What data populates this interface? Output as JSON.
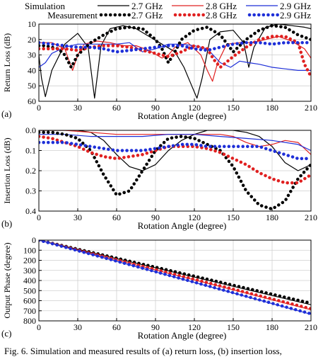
{
  "legend": {
    "row1_label": "Simulation",
    "row2_label": "Measurement",
    "entries": [
      "2.7 GHz",
      "2.8 GHz",
      "2.9 GHz"
    ]
  },
  "colors": {
    "s27": "#000000",
    "s28": "#e02020",
    "s29": "#1e2fd8"
  },
  "caption": "Fig. 6.   Simulation and measured results of (a) return loss, (b) insertion loss,",
  "chart_data": [
    {
      "type": "line",
      "panel_label": "(a)",
      "xlabel": "Rotation Angle (degree)",
      "ylabel": "Return Loss (dB)",
      "xlim": [
        0,
        210
      ],
      "ylim": [
        10,
        60
      ],
      "y_inverted": true,
      "xticks": [
        0,
        30,
        60,
        90,
        120,
        150,
        180,
        210
      ],
      "yticks": [
        10,
        20,
        30,
        40,
        50,
        60
      ],
      "grid": true,
      "series": [
        {
          "name": "2.7 GHz",
          "style": "solid",
          "color": "#000000",
          "x": [
            0,
            2,
            5,
            10,
            20,
            30,
            38,
            43,
            48,
            55,
            65,
            75,
            85,
            95,
            105,
            112,
            118,
            122,
            126,
            132,
            140,
            150,
            158,
            162,
            166,
            175,
            185,
            195,
            205,
            210
          ],
          "y": [
            30,
            45,
            57,
            40,
            23,
            16,
            25,
            58,
            24,
            13,
            11,
            13,
            18,
            23,
            28,
            38,
            50,
            58,
            45,
            20,
            15,
            14,
            22,
            38,
            25,
            12,
            10,
            11,
            12,
            13
          ]
        },
        {
          "name": "2.8 GHz",
          "style": "solid",
          "color": "#e02020",
          "x": [
            0,
            10,
            20,
            26,
            30,
            35,
            45,
            55,
            65,
            75,
            85,
            95,
            100,
            105,
            115,
            125,
            130,
            134,
            138,
            145,
            155,
            165,
            175,
            185,
            195,
            205,
            210
          ],
          "y": [
            22,
            22,
            26,
            40,
            30,
            23,
            21,
            22,
            24,
            24,
            27,
            32,
            30,
            25,
            22,
            30,
            40,
            47,
            35,
            23,
            22,
            22,
            20,
            18,
            21,
            26,
            32
          ]
        },
        {
          "name": "2.9 GHz",
          "style": "solid",
          "color": "#1e2fd8",
          "x": [
            0,
            5,
            10,
            20,
            30,
            45,
            60,
            70,
            80,
            90,
            100,
            110,
            120,
            130,
            140,
            148,
            155,
            162,
            170,
            180,
            190,
            200,
            210
          ],
          "y": [
            38,
            35,
            29,
            25,
            23,
            23,
            23,
            22,
            28,
            26,
            23,
            23,
            24,
            26,
            35,
            38,
            34,
            35,
            36,
            38,
            39,
            40,
            40
          ]
        },
        {
          "name": "2.7 GHz",
          "style": "dotted",
          "color": "#000000",
          "x": [
            0,
            5,
            10,
            15,
            20,
            25,
            30,
            40,
            50,
            60,
            70,
            80,
            90,
            95,
            100,
            105,
            110,
            120,
            130,
            140,
            150,
            160,
            170,
            180,
            190,
            200,
            210
          ],
          "y": [
            24,
            24,
            25,
            26,
            30,
            38,
            30,
            22,
            17,
            13,
            12,
            13,
            20,
            26,
            35,
            28,
            20,
            14,
            12,
            17,
            28,
            20,
            14,
            11,
            12,
            17,
            20
          ]
        },
        {
          "name": "2.8 GHz",
          "style": "dotted",
          "color": "#e02020",
          "x": [
            0,
            10,
            20,
            30,
            40,
            50,
            60,
            70,
            80,
            90,
            100,
            110,
            120,
            130,
            135,
            140,
            150,
            160,
            170,
            180,
            190,
            200,
            205,
            210
          ],
          "y": [
            26,
            26,
            26,
            27,
            25,
            24,
            24,
            25,
            27,
            29,
            31,
            28,
            24,
            26,
            33,
            38,
            31,
            25,
            20,
            18,
            18,
            22,
            36,
            44
          ]
        },
        {
          "name": "2.9 GHz",
          "style": "dotted",
          "color": "#1e2fd8",
          "x": [
            0,
            10,
            20,
            30,
            40,
            50,
            60,
            70,
            80,
            90,
            100,
            110,
            120,
            130,
            140,
            150,
            160,
            170,
            180,
            190,
            200,
            210
          ],
          "y": [
            22,
            23,
            24,
            25,
            25,
            26,
            28,
            27,
            26,
            25,
            24,
            24,
            26,
            27,
            25,
            23,
            22,
            22,
            23,
            22,
            22,
            22
          ]
        }
      ]
    },
    {
      "type": "line",
      "panel_label": "(b)",
      "xlabel": "Rotation Angle (degree)",
      "ylabel": "Insertion Loss (dB)",
      "xlim": [
        0,
        210
      ],
      "ylim": [
        0,
        0.4
      ],
      "y_inverted": true,
      "xticks": [
        0,
        30,
        60,
        90,
        120,
        150,
        180,
        210
      ],
      "ytick_labels": [
        "0.0",
        "0.1",
        "0.2",
        "0.3",
        "0.4"
      ],
      "yticks": [
        0,
        0.1,
        0.2,
        0.3,
        0.4
      ],
      "grid": true,
      "series": [
        {
          "name": "2.7 GHz",
          "style": "solid",
          "color": "#000000",
          "x": [
            0,
            10,
            20,
            30,
            40,
            50,
            60,
            70,
            80,
            90,
            100,
            110,
            120,
            130,
            140,
            150,
            160,
            170,
            180,
            185,
            190,
            200,
            210
          ],
          "y": [
            0.0,
            0.0,
            0.0,
            0.0,
            0.01,
            0.05,
            0.12,
            0.18,
            0.2,
            0.17,
            0.1,
            0.05,
            0.02,
            0.0,
            0.0,
            0.0,
            0.01,
            0.03,
            0.08,
            0.12,
            0.16,
            0.2,
            0.17
          ]
        },
        {
          "name": "2.8 GHz",
          "style": "solid",
          "color": "#e02020",
          "x": [
            0,
            20,
            40,
            60,
            80,
            100,
            120,
            140,
            150,
            160,
            170,
            180,
            190,
            200,
            210
          ],
          "y": [
            0.0,
            0.0,
            0.01,
            0.02,
            0.02,
            0.02,
            0.02,
            0.02,
            0.03,
            0.06,
            0.08,
            0.07,
            0.05,
            0.06,
            0.12
          ]
        },
        {
          "name": "2.9 GHz",
          "style": "solid",
          "color": "#1e2fd8",
          "x": [
            0,
            20,
            40,
            60,
            80,
            100,
            120,
            140,
            160,
            180,
            200,
            210
          ],
          "y": [
            0.02,
            0.02,
            0.03,
            0.03,
            0.03,
            0.02,
            0.02,
            0.03,
            0.04,
            0.05,
            0.07,
            0.1
          ]
        },
        {
          "name": "2.7 GHz",
          "style": "dotted",
          "color": "#000000",
          "x": [
            0,
            10,
            20,
            30,
            40,
            50,
            60,
            70,
            80,
            90,
            100,
            110,
            120,
            130,
            140,
            150,
            160,
            170,
            180,
            190,
            200,
            210
          ],
          "y": [
            0.01,
            0.01,
            0.02,
            0.04,
            0.1,
            0.22,
            0.32,
            0.3,
            0.2,
            0.1,
            0.04,
            0.03,
            0.04,
            0.07,
            0.1,
            0.18,
            0.3,
            0.37,
            0.39,
            0.35,
            0.24,
            0.17
          ]
        },
        {
          "name": "2.8 GHz",
          "style": "dotted",
          "color": "#e02020",
          "x": [
            0,
            10,
            20,
            30,
            40,
            50,
            60,
            70,
            80,
            90,
            100,
            110,
            120,
            130,
            140,
            150,
            160,
            170,
            180,
            190,
            200,
            210
          ],
          "y": [
            0.03,
            0.04,
            0.06,
            0.08,
            0.11,
            0.13,
            0.14,
            0.13,
            0.12,
            0.1,
            0.08,
            0.08,
            0.08,
            0.09,
            0.11,
            0.14,
            0.17,
            0.21,
            0.24,
            0.26,
            0.26,
            0.22
          ]
        },
        {
          "name": "2.9 GHz",
          "style": "dotted",
          "color": "#1e2fd8",
          "x": [
            0,
            10,
            20,
            30,
            40,
            50,
            60,
            70,
            80,
            90,
            100,
            110,
            120,
            130,
            140,
            150,
            160,
            170,
            180,
            190,
            200,
            210
          ],
          "y": [
            0.06,
            0.06,
            0.06,
            0.07,
            0.08,
            0.09,
            0.1,
            0.1,
            0.1,
            0.09,
            0.08,
            0.07,
            0.07,
            0.08,
            0.08,
            0.08,
            0.08,
            0.08,
            0.1,
            0.12,
            0.14,
            0.14
          ]
        }
      ]
    },
    {
      "type": "line",
      "panel_label": "(c)",
      "xlabel": "Rotation Angle (degree)",
      "ylabel": "Output Phase (degree)",
      "xlim": [
        0,
        210
      ],
      "ylim": [
        0,
        800
      ],
      "y_inverted": true,
      "xticks": [
        0,
        30,
        60,
        90,
        120,
        150,
        180,
        210
      ],
      "yticks": [
        0,
        100,
        200,
        300,
        400,
        500,
        600,
        700,
        800
      ],
      "grid": true,
      "series": [
        {
          "name": "2.7 GHz",
          "style": "solid",
          "color": "#000000",
          "x": [
            0,
            210
          ],
          "y": [
            0,
            640
          ]
        },
        {
          "name": "2.8 GHz",
          "style": "solid",
          "color": "#e02020",
          "x": [
            0,
            210
          ],
          "y": [
            0,
            690
          ]
        },
        {
          "name": "2.9 GHz",
          "style": "solid",
          "color": "#1e2fd8",
          "x": [
            0,
            210
          ],
          "y": [
            0,
            735
          ]
        },
        {
          "name": "2.7 GHz",
          "style": "dotted",
          "color": "#000000",
          "x": [
            0,
            210
          ],
          "y": [
            0,
            625
          ]
        },
        {
          "name": "2.8 GHz",
          "style": "dotted",
          "color": "#e02020",
          "x": [
            0,
            210
          ],
          "y": [
            0,
            680
          ]
        },
        {
          "name": "2.9 GHz",
          "style": "dotted",
          "color": "#1e2fd8",
          "x": [
            0,
            210
          ],
          "y": [
            0,
            730
          ]
        }
      ]
    }
  ]
}
